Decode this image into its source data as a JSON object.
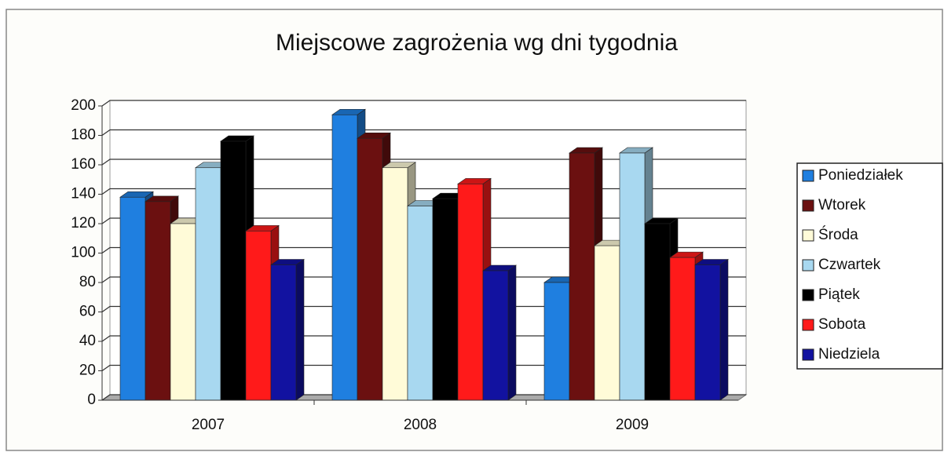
{
  "chart_data": {
    "type": "bar",
    "title": "Miejscowe zagrożenia wg dni tygodnia",
    "categories": [
      "2007",
      "2008",
      "2009"
    ],
    "series": [
      {
        "name": "Poniedziałek",
        "color": "#1f7fe0",
        "values": [
          138,
          194,
          80
        ]
      },
      {
        "name": "Wtorek",
        "color": "#6b1010",
        "values": [
          135,
          178,
          168
        ]
      },
      {
        "name": "Środa",
        "color": "#fffbd8",
        "values": [
          120,
          158,
          105
        ]
      },
      {
        "name": "Czwartek",
        "color": "#a8d8f0",
        "values": [
          158,
          132,
          168
        ]
      },
      {
        "name": "Piątek",
        "color": "#000000",
        "values": [
          176,
          137,
          120
        ]
      },
      {
        "name": "Sobota",
        "color": "#ff1a1a",
        "values": [
          115,
          147,
          97
        ]
      },
      {
        "name": "Niedziela",
        "color": "#1212a0",
        "values": [
          92,
          88,
          92
        ]
      }
    ],
    "ylim": [
      0,
      200
    ],
    "yticks": [
      0,
      20,
      40,
      60,
      80,
      100,
      120,
      140,
      160,
      180,
      200
    ],
    "grid": true,
    "legend": "right"
  }
}
